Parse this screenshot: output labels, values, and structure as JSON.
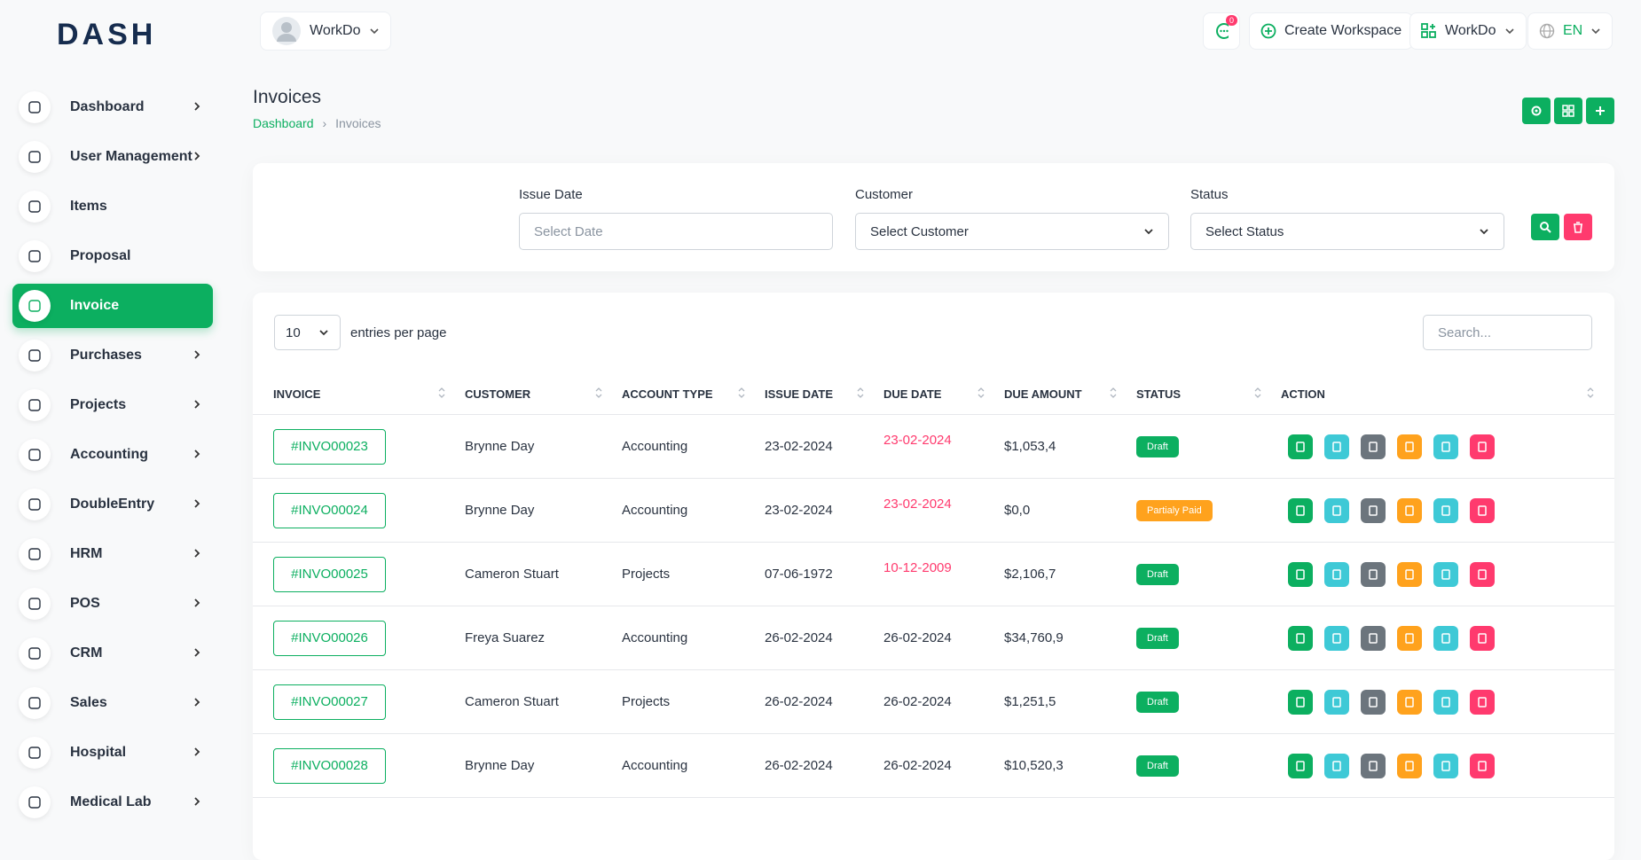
{
  "logo": "DASH",
  "header": {
    "workspace": "WorkDo",
    "notification_count": "0",
    "create_workspace": "Create Workspace",
    "workspace_menu": "WorkDo",
    "language": "EN"
  },
  "sidebar": [
    {
      "label": "Dashboard",
      "arrow": true
    },
    {
      "label": "User Management",
      "arrow": true
    },
    {
      "label": "Items",
      "arrow": false
    },
    {
      "label": "Proposal",
      "arrow": false
    },
    {
      "label": "Invoice",
      "arrow": false,
      "active": true
    },
    {
      "label": "Purchases",
      "arrow": true
    },
    {
      "label": "Projects",
      "arrow": true
    },
    {
      "label": "Accounting",
      "arrow": true
    },
    {
      "label": "DoubleEntry",
      "arrow": true
    },
    {
      "label": "HRM",
      "arrow": true
    },
    {
      "label": "POS",
      "arrow": true
    },
    {
      "label": "CRM",
      "arrow": true
    },
    {
      "label": "Sales",
      "arrow": true
    },
    {
      "label": "Hospital",
      "arrow": true
    },
    {
      "label": "Medical Lab",
      "arrow": true
    }
  ],
  "page": {
    "title": "Invoices",
    "breadcrumb": [
      "Dashboard",
      "Invoices"
    ]
  },
  "filters": [
    {
      "label": "Issue Date",
      "placeholder": "Select Date",
      "select": false
    },
    {
      "label": "Customer",
      "placeholder": "Select Customer",
      "select": true
    },
    {
      "label": "Status",
      "placeholder": "Select Status",
      "select": true
    }
  ],
  "table": {
    "entries": "10",
    "entries_label": "entries per page",
    "search_placeholder": "Search...",
    "columns": [
      "INVOICE",
      "CUSTOMER",
      "ACCOUNT TYPE",
      "ISSUE DATE",
      "DUE DATE",
      "DUE AMOUNT",
      "STATUS",
      "ACTION"
    ],
    "rows": [
      {
        "cells": [
          "#INVO00023",
          "Brynne Day",
          "Accounting",
          "23-02-2024",
          "23-02-2024",
          "$1,053,4",
          "Draft"
        ],
        "overdue": true,
        "status_color": "#0CAF60"
      },
      {
        "cells": [
          "#INVO00024",
          "Brynne Day",
          "Accounting",
          "23-02-2024",
          "23-02-2024",
          "$0,0",
          "Partialy Paid"
        ],
        "overdue": true,
        "status_color": "#FFA21D"
      },
      {
        "cells": [
          "#INVO00025",
          "Cameron Stuart",
          "Projects",
          "07-06-1972",
          "10-12-2009",
          "$2,106,7",
          "Draft"
        ],
        "overdue": true,
        "status_color": "#0CAF60"
      },
      {
        "cells": [
          "#INVO00026",
          "Freya Suarez",
          "Accounting",
          "26-02-2024",
          "26-02-2024",
          "$34,760,9",
          "Draft"
        ],
        "overdue": false,
        "status_color": "#0CAF60"
      },
      {
        "cells": [
          "#INVO00027",
          "Cameron Stuart",
          "Projects",
          "26-02-2024",
          "26-02-2024",
          "$1,251,5",
          "Draft"
        ],
        "overdue": false,
        "status_color": "#0CAF60"
      },
      {
        "cells": [
          "#INVO00028",
          "Brynne Day",
          "Accounting",
          "26-02-2024",
          "26-02-2024",
          "$10,520,3",
          "Draft"
        ],
        "overdue": false,
        "status_color": "#0CAF60"
      }
    ]
  }
}
